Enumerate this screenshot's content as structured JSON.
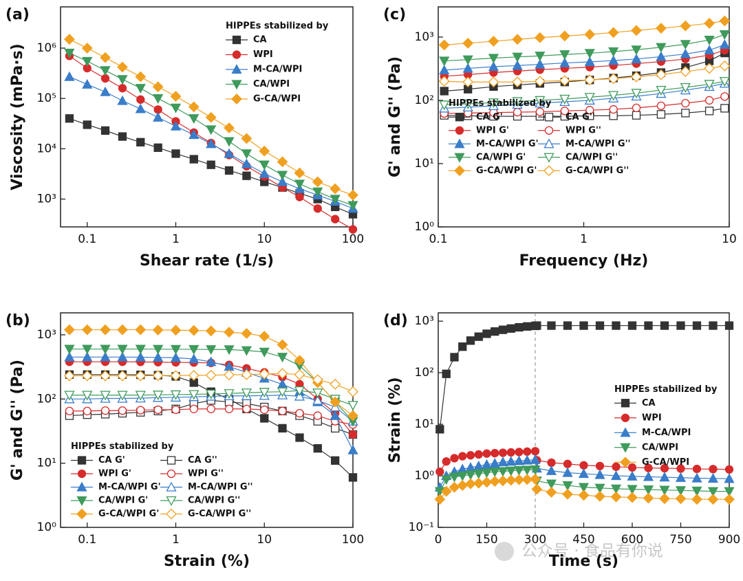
{
  "chart_data": [
    {
      "type": "line",
      "panel_label": "(a)",
      "xlabel": "Shear rate (1/s)",
      "ylabel": "Viscosity (mPa·s)",
      "xlog": true,
      "ylog": true,
      "xlim": [
        0.05,
        100
      ],
      "ylim": [
        280,
        6600000
      ],
      "xticks": [
        0.1,
        1,
        10,
        100
      ],
      "yticks": [
        {
          "value": 1000,
          "label": "10³"
        },
        {
          "value": 10000,
          "label": "10⁴"
        },
        {
          "value": 100000,
          "label": "10⁵"
        },
        {
          "value": 1000000,
          "label": "10⁶"
        }
      ],
      "legend": "upper right",
      "legend_title": "HIPPEs stabilized by",
      "legend_columns": 1,
      "x": [
        0.063,
        0.1,
        0.16,
        0.25,
        0.4,
        0.63,
        1,
        1.6,
        2.5,
        4,
        6.3,
        10,
        16,
        25,
        40,
        63,
        100
      ],
      "series": [
        {
          "name": "CA",
          "color": "#333333",
          "marker": "square",
          "filled": true,
          "values": [
            40000,
            30000,
            23000,
            17500,
            13500,
            10500,
            8000,
            6200,
            4800,
            3700,
            2900,
            2200,
            1700,
            1300,
            1000,
            700,
            500
          ]
        },
        {
          "name": "WPI",
          "color": "#d62b2b",
          "marker": "circle",
          "filled": true,
          "values": [
            700000,
            400000,
            250000,
            160000,
            95000,
            60000,
            35000,
            21000,
            13000,
            7500,
            4500,
            2800,
            1700,
            1100,
            650,
            400,
            250
          ]
        },
        {
          "name": "M-CA/WPI",
          "color": "#3a7dc9",
          "marker": "triangle-up",
          "filled": true,
          "values": [
            270000,
            190000,
            135000,
            90000,
            62000,
            42000,
            28000,
            19000,
            12500,
            8000,
            5000,
            3200,
            2200,
            1600,
            1200,
            900,
            650
          ]
        },
        {
          "name": "CA/WPI",
          "color": "#3f9a5c",
          "marker": "triangle-down",
          "filled": true,
          "values": [
            800000,
            550000,
            360000,
            240000,
            160000,
            100000,
            65000,
            40000,
            24000,
            14000,
            8000,
            4800,
            3000,
            2000,
            1400,
            1000,
            750
          ]
        },
        {
          "name": "G-CA/WPI",
          "color": "#f0a020",
          "marker": "diamond",
          "filled": true,
          "values": [
            1500000,
            1000000,
            650000,
            420000,
            270000,
            170000,
            110000,
            68000,
            42000,
            26000,
            16000,
            9000,
            5500,
            3300,
            2200,
            1600,
            1200
          ]
        }
      ]
    },
    {
      "type": "line",
      "panel_label": "(b)",
      "xlabel": "Strain (%)",
      "ylabel": "G' and G'' (Pa)",
      "xlog": true,
      "ylog": true,
      "xlim": [
        0.05,
        100
      ],
      "ylim": [
        1,
        2200
      ],
      "xticks": [
        0.1,
        1,
        10,
        100
      ],
      "yticks": [
        {
          "value": 1,
          "label": "10⁰"
        },
        {
          "value": 10,
          "label": "10¹"
        },
        {
          "value": 100,
          "label": "10²"
        },
        {
          "value": 1000,
          "label": "10³"
        }
      ],
      "legend": "lower left",
      "legend_title": "HIPPEs stabilized by",
      "legend_columns": 2,
      "x": [
        0.063,
        0.1,
        0.16,
        0.25,
        0.4,
        0.63,
        1,
        1.6,
        2.5,
        4,
        6.3,
        10,
        16,
        25,
        40,
        63,
        100
      ],
      "series": [
        {
          "name": "CA G'",
          "color": "#333333",
          "marker": "square",
          "filled": true,
          "values": [
            240,
            240,
            240,
            240,
            238,
            235,
            225,
            180,
            130,
            100,
            70,
            50,
            35,
            25,
            17,
            11,
            6
          ]
        },
        {
          "name": "CA G''",
          "color": "#333333",
          "marker": "square",
          "filled": false,
          "values": [
            55,
            57,
            58,
            60,
            62,
            65,
            70,
            85,
            95,
            90,
            85,
            75,
            65,
            55,
            45,
            35,
            28
          ]
        },
        {
          "name": "WPI G'",
          "color": "#d62b2b",
          "marker": "circle",
          "filled": true,
          "values": [
            380,
            380,
            380,
            380,
            378,
            375,
            372,
            370,
            365,
            340,
            300,
            260,
            220,
            170,
            100,
            60,
            28
          ]
        },
        {
          "name": "WPI G''",
          "color": "#d62b2b",
          "marker": "circle",
          "filled": false,
          "values": [
            65,
            65,
            66,
            66,
            67,
            68,
            68,
            70,
            70,
            70,
            70,
            68,
            65,
            60,
            55,
            45,
            40
          ]
        },
        {
          "name": "M-CA/WPI G'",
          "color": "#3a7dc9",
          "marker": "triangle-up",
          "filled": true,
          "values": [
            450,
            450,
            450,
            450,
            448,
            445,
            440,
            420,
            380,
            320,
            260,
            210,
            170,
            130,
            90,
            55,
            16
          ]
        },
        {
          "name": "M-CA/WPI G''",
          "color": "#3a7dc9",
          "marker": "triangle-up",
          "filled": false,
          "values": [
            100,
            100,
            102,
            102,
            103,
            105,
            106,
            108,
            110,
            112,
            112,
            113,
            115,
            110,
            95,
            75,
            45
          ]
        },
        {
          "name": "CA/WPI G'",
          "color": "#3f9a5c",
          "marker": "triangle-down",
          "filled": true,
          "values": [
            600,
            600,
            600,
            600,
            600,
            598,
            596,
            594,
            592,
            590,
            570,
            540,
            450,
            330,
            180,
            90,
            45
          ]
        },
        {
          "name": "CA/WPI G''",
          "color": "#3f9a5c",
          "marker": "triangle-down",
          "filled": false,
          "values": [
            115,
            115,
            115,
            115,
            115,
            116,
            117,
            118,
            120,
            122,
            125,
            128,
            130,
            135,
            125,
            100,
            80
          ]
        },
        {
          "name": "G-CA/WPI G'",
          "color": "#f0a020",
          "marker": "diamond",
          "filled": true,
          "values": [
            1200,
            1200,
            1200,
            1200,
            1200,
            1190,
            1180,
            1170,
            1150,
            1100,
            1050,
            950,
            700,
            400,
            180,
            90,
            55
          ]
        },
        {
          "name": "G-CA/WPI G''",
          "color": "#f0a020",
          "marker": "diamond",
          "filled": false,
          "values": [
            230,
            230,
            230,
            230,
            230,
            232,
            232,
            233,
            235,
            238,
            240,
            245,
            250,
            240,
            200,
            170,
            130
          ]
        }
      ]
    },
    {
      "type": "line",
      "panel_label": "(c)",
      "xlabel": "Frequency (Hz)",
      "ylabel": "G' and G'' (Pa)",
      "xlog": true,
      "ylog": true,
      "xlim": [
        0.1,
        10
      ],
      "ylim": [
        1,
        3000
      ],
      "xticks": [
        0.1,
        1,
        10
      ],
      "yticks": [
        {
          "value": 1,
          "label": "10⁰"
        },
        {
          "value": 10,
          "label": "10¹"
        },
        {
          "value": 100,
          "label": "10²"
        },
        {
          "value": 1000,
          "label": "10³"
        }
      ],
      "legend": "center left",
      "legend_title": "HIPPEs stabilized by",
      "legend_columns": 2,
      "x": [
        0.11,
        0.16,
        0.24,
        0.35,
        0.5,
        0.74,
        1.1,
        1.6,
        2.3,
        3.4,
        5,
        7.3,
        9.3
      ],
      "series": [
        {
          "name": "CA G'",
          "color": "#333333",
          "marker": "square",
          "filled": true,
          "values": [
            140,
            150,
            165,
            175,
            185,
            195,
            210,
            225,
            245,
            275,
            330,
            420,
            560
          ]
        },
        {
          "name": "CA G''",
          "color": "#333333",
          "marker": "square",
          "filled": false,
          "values": [
            58,
            57,
            56,
            56,
            56,
            56,
            57,
            57,
            58,
            60,
            63,
            68,
            75
          ]
        },
        {
          "name": "WPI G'",
          "color": "#d62b2b",
          "marker": "circle",
          "filled": true,
          "values": [
            240,
            255,
            275,
            290,
            305,
            320,
            335,
            355,
            380,
            410,
            450,
            520,
            620
          ]
        },
        {
          "name": "WPI G''",
          "color": "#d62b2b",
          "marker": "circle",
          "filled": false,
          "values": [
            62,
            63,
            64,
            65,
            66,
            68,
            70,
            72,
            76,
            82,
            90,
            100,
            115
          ]
        },
        {
          "name": "M-CA/WPI G'",
          "color": "#3a7dc9",
          "marker": "triangle-up",
          "filled": true,
          "values": [
            300,
            320,
            340,
            355,
            370,
            390,
            405,
            425,
            450,
            490,
            540,
            620,
            760
          ]
        },
        {
          "name": "M-CA/WPI G''",
          "color": "#3a7dc9",
          "marker": "triangle-up",
          "filled": false,
          "values": [
            75,
            78,
            82,
            86,
            90,
            95,
            100,
            108,
            116,
            128,
            145,
            165,
            185
          ]
        },
        {
          "name": "CA/WPI G'",
          "color": "#3f9a5c",
          "marker": "triangle-down",
          "filled": true,
          "values": [
            420,
            440,
            465,
            485,
            505,
            530,
            555,
            590,
            630,
            690,
            770,
            900,
            1100
          ]
        },
        {
          "name": "CA/WPI G''",
          "color": "#3f9a5c",
          "marker": "triangle-down",
          "filled": false,
          "values": [
            85,
            88,
            92,
            96,
            100,
            105,
            112,
            120,
            130,
            145,
            160,
            180,
            200
          ]
        },
        {
          "name": "G-CA/WPI G'",
          "color": "#f0a020",
          "marker": "diamond",
          "filled": true,
          "values": [
            750,
            800,
            860,
            920,
            980,
            1040,
            1100,
            1180,
            1270,
            1380,
            1500,
            1650,
            1800
          ]
        },
        {
          "name": "G-CA/WPI G''",
          "color": "#f0a020",
          "marker": "diamond",
          "filled": false,
          "values": [
            200,
            195,
            195,
            195,
            200,
            205,
            210,
            220,
            235,
            255,
            285,
            320,
            350
          ]
        }
      ]
    },
    {
      "type": "line",
      "panel_label": "(d)",
      "xlabel": "Time (s)",
      "ylabel": "Strain (%)",
      "xlog": false,
      "ylog": true,
      "xlim": [
        0,
        900
      ],
      "ylim": [
        0.1,
        1450
      ],
      "xticks": [
        0,
        150,
        300,
        450,
        600,
        750,
        900
      ],
      "yticks": [
        {
          "value": 0.1,
          "label": "10⁻¹"
        },
        {
          "value": 1,
          "label": "10⁰"
        },
        {
          "value": 10,
          "label": "10¹"
        },
        {
          "value": 100,
          "label": "10²"
        },
        {
          "value": 1000,
          "label": "10³"
        }
      ],
      "vline": 300,
      "legend": "center right",
      "legend_title": "HIPPEs stabilized by",
      "legend_columns": 1,
      "x": [
        5,
        25,
        50,
        75,
        100,
        125,
        150,
        175,
        200,
        225,
        250,
        275,
        300,
        305,
        350,
        400,
        450,
        500,
        550,
        600,
        650,
        700,
        750,
        800,
        850,
        900
      ],
      "series": [
        {
          "name": "CA",
          "color": "#333333",
          "marker": "square",
          "filled": true,
          "values": [
            8,
            95,
            200,
            320,
            420,
            500,
            570,
            630,
            680,
            720,
            760,
            790,
            810,
            820,
            820,
            820,
            820,
            820,
            820,
            820,
            820,
            820,
            820,
            820,
            820,
            820
          ]
        },
        {
          "name": "WPI",
          "color": "#d62b2b",
          "marker": "circle",
          "filled": true,
          "values": [
            1.2,
            1.9,
            2.2,
            2.4,
            2.5,
            2.6,
            2.7,
            2.75,
            2.8,
            2.85,
            2.9,
            2.95,
            3.0,
            2.0,
            1.8,
            1.7,
            1.6,
            1.55,
            1.5,
            1.45,
            1.42,
            1.4,
            1.38,
            1.36,
            1.35,
            1.33
          ]
        },
        {
          "name": "M-CA/WPI",
          "color": "#3a7dc9",
          "marker": "triangle-up",
          "filled": true,
          "values": [
            0.6,
            1.0,
            1.2,
            1.35,
            1.45,
            1.55,
            1.65,
            1.75,
            1.85,
            1.9,
            1.95,
            2.0,
            2.05,
            1.4,
            1.25,
            1.15,
            1.1,
            1.05,
            1.0,
            0.98,
            0.96,
            0.94,
            0.92,
            0.9,
            0.89,
            0.88
          ]
        },
        {
          "name": "CA/WPI",
          "color": "#3f9a5c",
          "marker": "triangle-down",
          "filled": true,
          "values": [
            0.5,
            0.85,
            0.95,
            1.0,
            1.05,
            1.1,
            1.15,
            1.2,
            1.22,
            1.25,
            1.28,
            1.3,
            1.32,
            0.8,
            0.7,
            0.65,
            0.6,
            0.58,
            0.56,
            0.55,
            0.54,
            0.53,
            0.52,
            0.51,
            0.5,
            0.5
          ]
        },
        {
          "name": "G-CA/WPI",
          "color": "#f0a020",
          "marker": "diamond",
          "filled": true,
          "values": [
            0.35,
            0.5,
            0.6,
            0.65,
            0.7,
            0.72,
            0.75,
            0.78,
            0.8,
            0.82,
            0.84,
            0.85,
            0.86,
            0.55,
            0.48,
            0.44,
            0.42,
            0.4,
            0.39,
            0.38,
            0.37,
            0.36,
            0.36,
            0.35,
            0.35,
            0.35
          ]
        }
      ]
    }
  ],
  "watermark": "公众号 · 食品有你说"
}
